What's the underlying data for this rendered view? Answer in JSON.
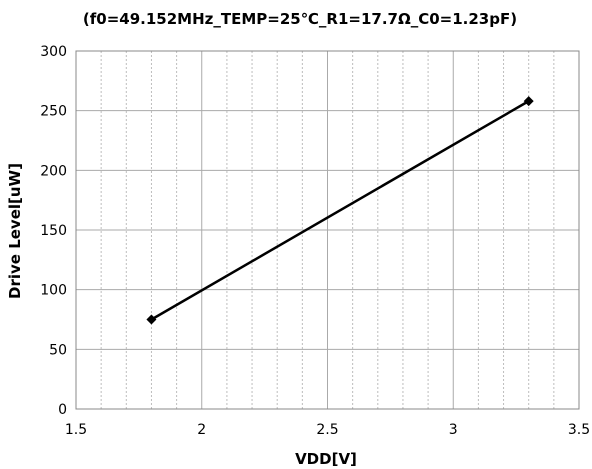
{
  "chart_data": {
    "type": "line",
    "title": "(f0=49.152MHz_TEMP=25℃_R1=17.7Ω_C0=1.23pF)",
    "xlabel": "VDD[V]",
    "ylabel": "Drive Level[uW]",
    "xlim": [
      1.5,
      3.5
    ],
    "ylim": [
      0,
      300
    ],
    "x_ticks": [
      1.5,
      2,
      2.5,
      3,
      3.5
    ],
    "x_tick_labels": [
      "1.5",
      "2",
      "2.5",
      "3",
      "3.5"
    ],
    "y_ticks": [
      0,
      50,
      100,
      150,
      200,
      250,
      300
    ],
    "y_tick_labels": [
      "0",
      "50",
      "100",
      "150",
      "200",
      "250",
      "300"
    ],
    "x_minor_step": 0.1,
    "grid": true,
    "legend": "none",
    "series": [
      {
        "x": [
          1.8,
          3.3
        ],
        "y": [
          75,
          258
        ],
        "marker": "diamond",
        "color": "#000000"
      }
    ]
  }
}
